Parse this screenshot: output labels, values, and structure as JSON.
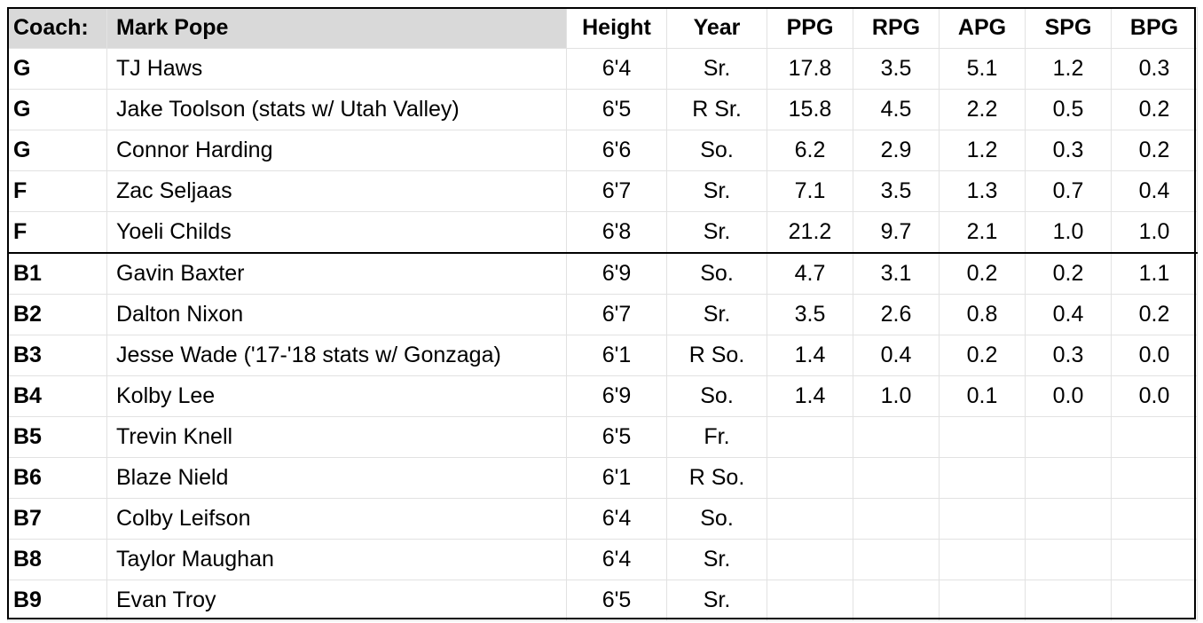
{
  "header": {
    "coach_label": "Coach:",
    "coach_name": "Mark Pope",
    "columns": [
      "Height",
      "Year",
      "PPG",
      "RPG",
      "APG",
      "SPG",
      "BPG"
    ]
  },
  "rows": [
    {
      "pos": "G",
      "name": "TJ Haws",
      "height": "6'4",
      "year": "Sr.",
      "ppg": "17.8",
      "rpg": "3.5",
      "apg": "5.1",
      "spg": "1.2",
      "bpg": "0.3"
    },
    {
      "pos": "G",
      "name": "Jake Toolson (stats w/ Utah Valley)",
      "height": "6'5",
      "year": "R Sr.",
      "ppg": "15.8",
      "rpg": "4.5",
      "apg": "2.2",
      "spg": "0.5",
      "bpg": "0.2"
    },
    {
      "pos": "G",
      "name": "Connor Harding",
      "height": "6'6",
      "year": "So.",
      "ppg": "6.2",
      "rpg": "2.9",
      "apg": "1.2",
      "spg": "0.3",
      "bpg": "0.2"
    },
    {
      "pos": "F",
      "name": "Zac Seljaas",
      "height": "6'7",
      "year": "Sr.",
      "ppg": "7.1",
      "rpg": "3.5",
      "apg": "1.3",
      "spg": "0.7",
      "bpg": "0.4"
    },
    {
      "pos": "F",
      "name": "Yoeli Childs",
      "height": "6'8",
      "year": "Sr.",
      "ppg": "21.2",
      "rpg": "9.7",
      "apg": "2.1",
      "spg": "1.0",
      "bpg": "1.0"
    },
    {
      "pos": "B1",
      "name": "Gavin Baxter",
      "height": "6'9",
      "year": "So.",
      "ppg": "4.7",
      "rpg": "3.1",
      "apg": "0.2",
      "spg": "0.2",
      "bpg": "1.1"
    },
    {
      "pos": "B2",
      "name": "Dalton Nixon",
      "height": "6'7",
      "year": "Sr.",
      "ppg": "3.5",
      "rpg": "2.6",
      "apg": "0.8",
      "spg": "0.4",
      "bpg": "0.2"
    },
    {
      "pos": "B3",
      "name": "Jesse Wade ('17-'18 stats w/ Gonzaga)",
      "height": "6'1",
      "year": "R So.",
      "ppg": "1.4",
      "rpg": "0.4",
      "apg": "0.2",
      "spg": "0.3",
      "bpg": "0.0"
    },
    {
      "pos": "B4",
      "name": "Kolby Lee",
      "height": "6'9",
      "year": "So.",
      "ppg": "1.4",
      "rpg": "1.0",
      "apg": "0.1",
      "spg": "0.0",
      "bpg": "0.0"
    },
    {
      "pos": "B5",
      "name": "Trevin Knell",
      "height": "6'5",
      "year": "Fr.",
      "ppg": "",
      "rpg": "",
      "apg": "",
      "spg": "",
      "bpg": ""
    },
    {
      "pos": "B6",
      "name": "Blaze Nield",
      "height": "6'1",
      "year": "R So.",
      "ppg": "",
      "rpg": "",
      "apg": "",
      "spg": "",
      "bpg": ""
    },
    {
      "pos": "B7",
      "name": "Colby Leifson",
      "height": "6'4",
      "year": "So.",
      "ppg": "",
      "rpg": "",
      "apg": "",
      "spg": "",
      "bpg": ""
    },
    {
      "pos": "B8",
      "name": "Taylor Maughan",
      "height": "6'4",
      "year": "Sr.",
      "ppg": "",
      "rpg": "",
      "apg": "",
      "spg": "",
      "bpg": ""
    },
    {
      "pos": "B9",
      "name": "Evan Troy",
      "height": "6'5",
      "year": "Sr.",
      "ppg": "",
      "rpg": "",
      "apg": "",
      "spg": "",
      "bpg": ""
    }
  ]
}
